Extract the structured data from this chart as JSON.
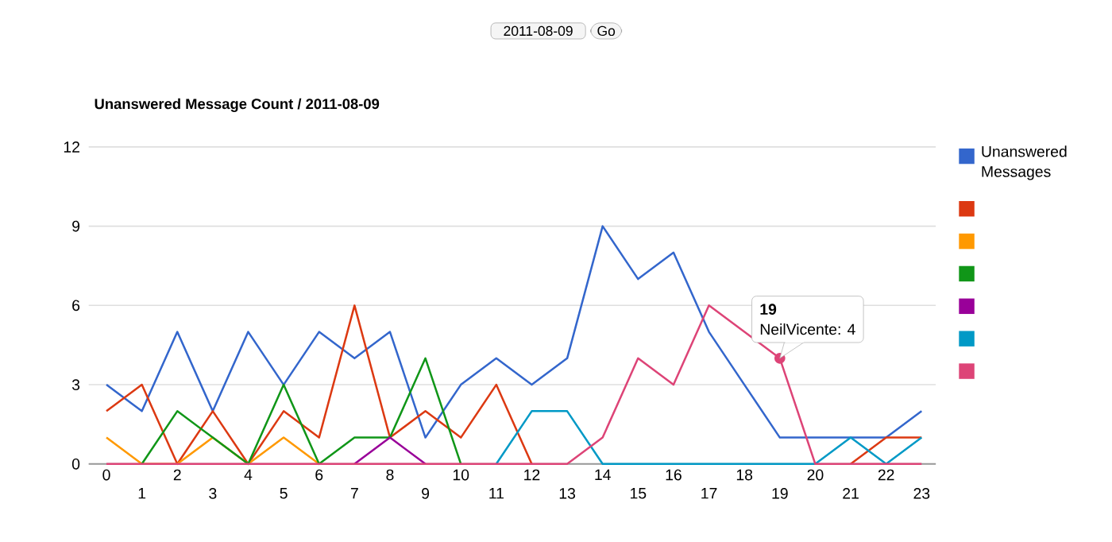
{
  "chart_data": {
    "type": "line",
    "title": "Unanswered Message Count / 2011-08-09",
    "categories": [
      "0",
      "1",
      "2",
      "3",
      "4",
      "5",
      "6",
      "7",
      "8",
      "9",
      "10",
      "11",
      "12",
      "13",
      "14",
      "15",
      "16",
      "17",
      "18",
      "19",
      "20",
      "21",
      "22",
      "23"
    ],
    "series": [
      {
        "name": "Unanswered Messages",
        "color": "#3366cc",
        "values": [
          3,
          2,
          5,
          2,
          5,
          3,
          5,
          4,
          5,
          1,
          3,
          4,
          3,
          4,
          9,
          7,
          8,
          5,
          3,
          1,
          1,
          1,
          1,
          2
        ]
      },
      {
        "color": "#dc3912",
        "values": [
          2,
          3,
          0,
          2,
          0,
          2,
          1,
          6,
          1,
          2,
          1,
          3,
          0,
          null,
          null,
          null,
          null,
          null,
          null,
          null,
          null,
          0,
          1,
          1
        ]
      },
      {
        "color": "#ff9900",
        "values": [
          1,
          0,
          0,
          1,
          0,
          1,
          0,
          null,
          null,
          null,
          null,
          null,
          null,
          null,
          null,
          null,
          null,
          null,
          null,
          null,
          null,
          null,
          null,
          null
        ]
      },
      {
        "color": "#109618",
        "values": [
          null,
          0,
          2,
          1,
          0,
          3,
          0,
          1,
          1,
          4,
          0,
          null,
          null,
          null,
          null,
          null,
          null,
          null,
          null,
          null,
          null,
          null,
          null,
          null
        ]
      },
      {
        "color": "#990099",
        "values": [
          null,
          null,
          null,
          null,
          null,
          null,
          null,
          0,
          1,
          0,
          null,
          null,
          null,
          null,
          null,
          null,
          null,
          null,
          null,
          null,
          null,
          null,
          null,
          null
        ]
      },
      {
        "color": "#0099c6",
        "values": [
          null,
          null,
          null,
          null,
          null,
          null,
          null,
          null,
          null,
          null,
          null,
          0,
          2,
          2,
          0,
          0,
          0,
          0,
          0,
          0,
          0,
          1,
          0,
          1
        ]
      },
      {
        "color": "#dd4477",
        "values": [
          0,
          0,
          0,
          0,
          0,
          0,
          0,
          0,
          0,
          0,
          0,
          0,
          0,
          0,
          1,
          4,
          3,
          6,
          5,
          4,
          0,
          0,
          0,
          0
        ]
      }
    ],
    "ylim": [
      0,
      12
    ],
    "yticks": [
      0,
      3,
      6,
      9,
      12
    ],
    "grid": "y",
    "legend": "right",
    "marker": "none",
    "line_style": "solid",
    "annotations": [
      "2011-08-09",
      "Go",
      {
        "text": "19",
        "x": "19",
        "y": 4
      },
      {
        "text": "NeilVicente: 4",
        "x": "19",
        "y": 4
      }
    ]
  }
}
